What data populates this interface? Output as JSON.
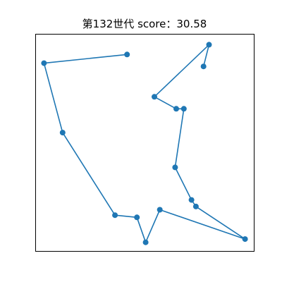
{
  "chart_data": {
    "type": "line",
    "title": "第132世代 score：30.58",
    "xlabel": "",
    "ylabel": "",
    "xlim": [
      0,
      100
    ],
    "ylim": [
      0,
      100
    ],
    "axis_ticks_visible": false,
    "grid": false,
    "marker": "circle",
    "line_color": "#1f77b4",
    "marker_color": "#1f77b4",
    "series": [
      {
        "x": [
          77,
          79.5,
          54.5,
          64.5,
          68,
          64,
          71.5,
          73.5,
          96,
          57,
          50.5,
          46.5,
          36.5,
          12.5,
          4,
          42
        ],
        "y": [
          85,
          95,
          71,
          65.5,
          65.5,
          38.5,
          23.5,
          20.5,
          5.5,
          19,
          4,
          15.5,
          16.5,
          54.5,
          86.5,
          90.5
        ]
      }
    ]
  }
}
